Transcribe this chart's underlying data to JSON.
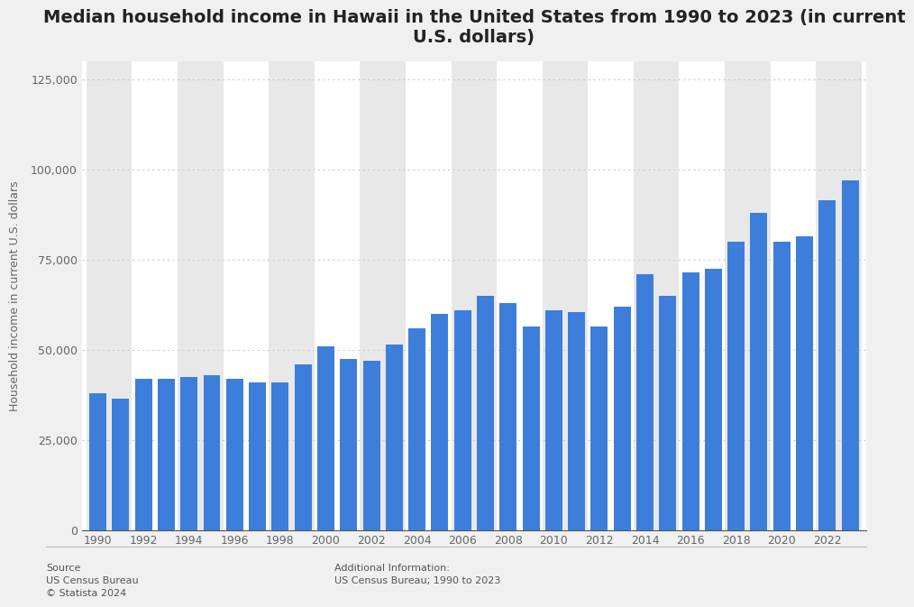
{
  "title": "Median household income in Hawaii in the United States from 1990 to 2023 (in current\nU.S. dollars)",
  "ylabel": "Household income in current U.S. dollars",
  "years": [
    1990,
    1991,
    1992,
    1993,
    1994,
    1995,
    1996,
    1997,
    1998,
    1999,
    2000,
    2001,
    2002,
    2003,
    2004,
    2005,
    2006,
    2007,
    2008,
    2009,
    2010,
    2011,
    2012,
    2013,
    2014,
    2015,
    2016,
    2017,
    2018,
    2019,
    2020,
    2021,
    2022,
    2023
  ],
  "values": [
    38000,
    36500,
    42000,
    42000,
    42500,
    43000,
    42000,
    41000,
    41000,
    46000,
    51000,
    47500,
    47000,
    51500,
    56000,
    60000,
    61000,
    65000,
    63000,
    56500,
    61000,
    60500,
    56500,
    62000,
    71000,
    65000,
    71500,
    72500,
    80000,
    88000,
    80000,
    81500,
    91500,
    97000
  ],
  "bar_color": "#3d7edb",
  "background_color": "#f0f0f0",
  "plot_background": "#ffffff",
  "band_color": "#e8e8e8",
  "grid_color": "#cccccc",
  "ylim": [
    0,
    130000
  ],
  "yticks": [
    0,
    25000,
    50000,
    75000,
    100000,
    125000
  ],
  "source_text": "Source\nUS Census Bureau\n© Statista 2024",
  "additional_text": "Additional Information:\nUS Census Bureau; 1990 to 2023",
  "title_fontsize": 14,
  "axis_label_fontsize": 9,
  "tick_fontsize": 9
}
